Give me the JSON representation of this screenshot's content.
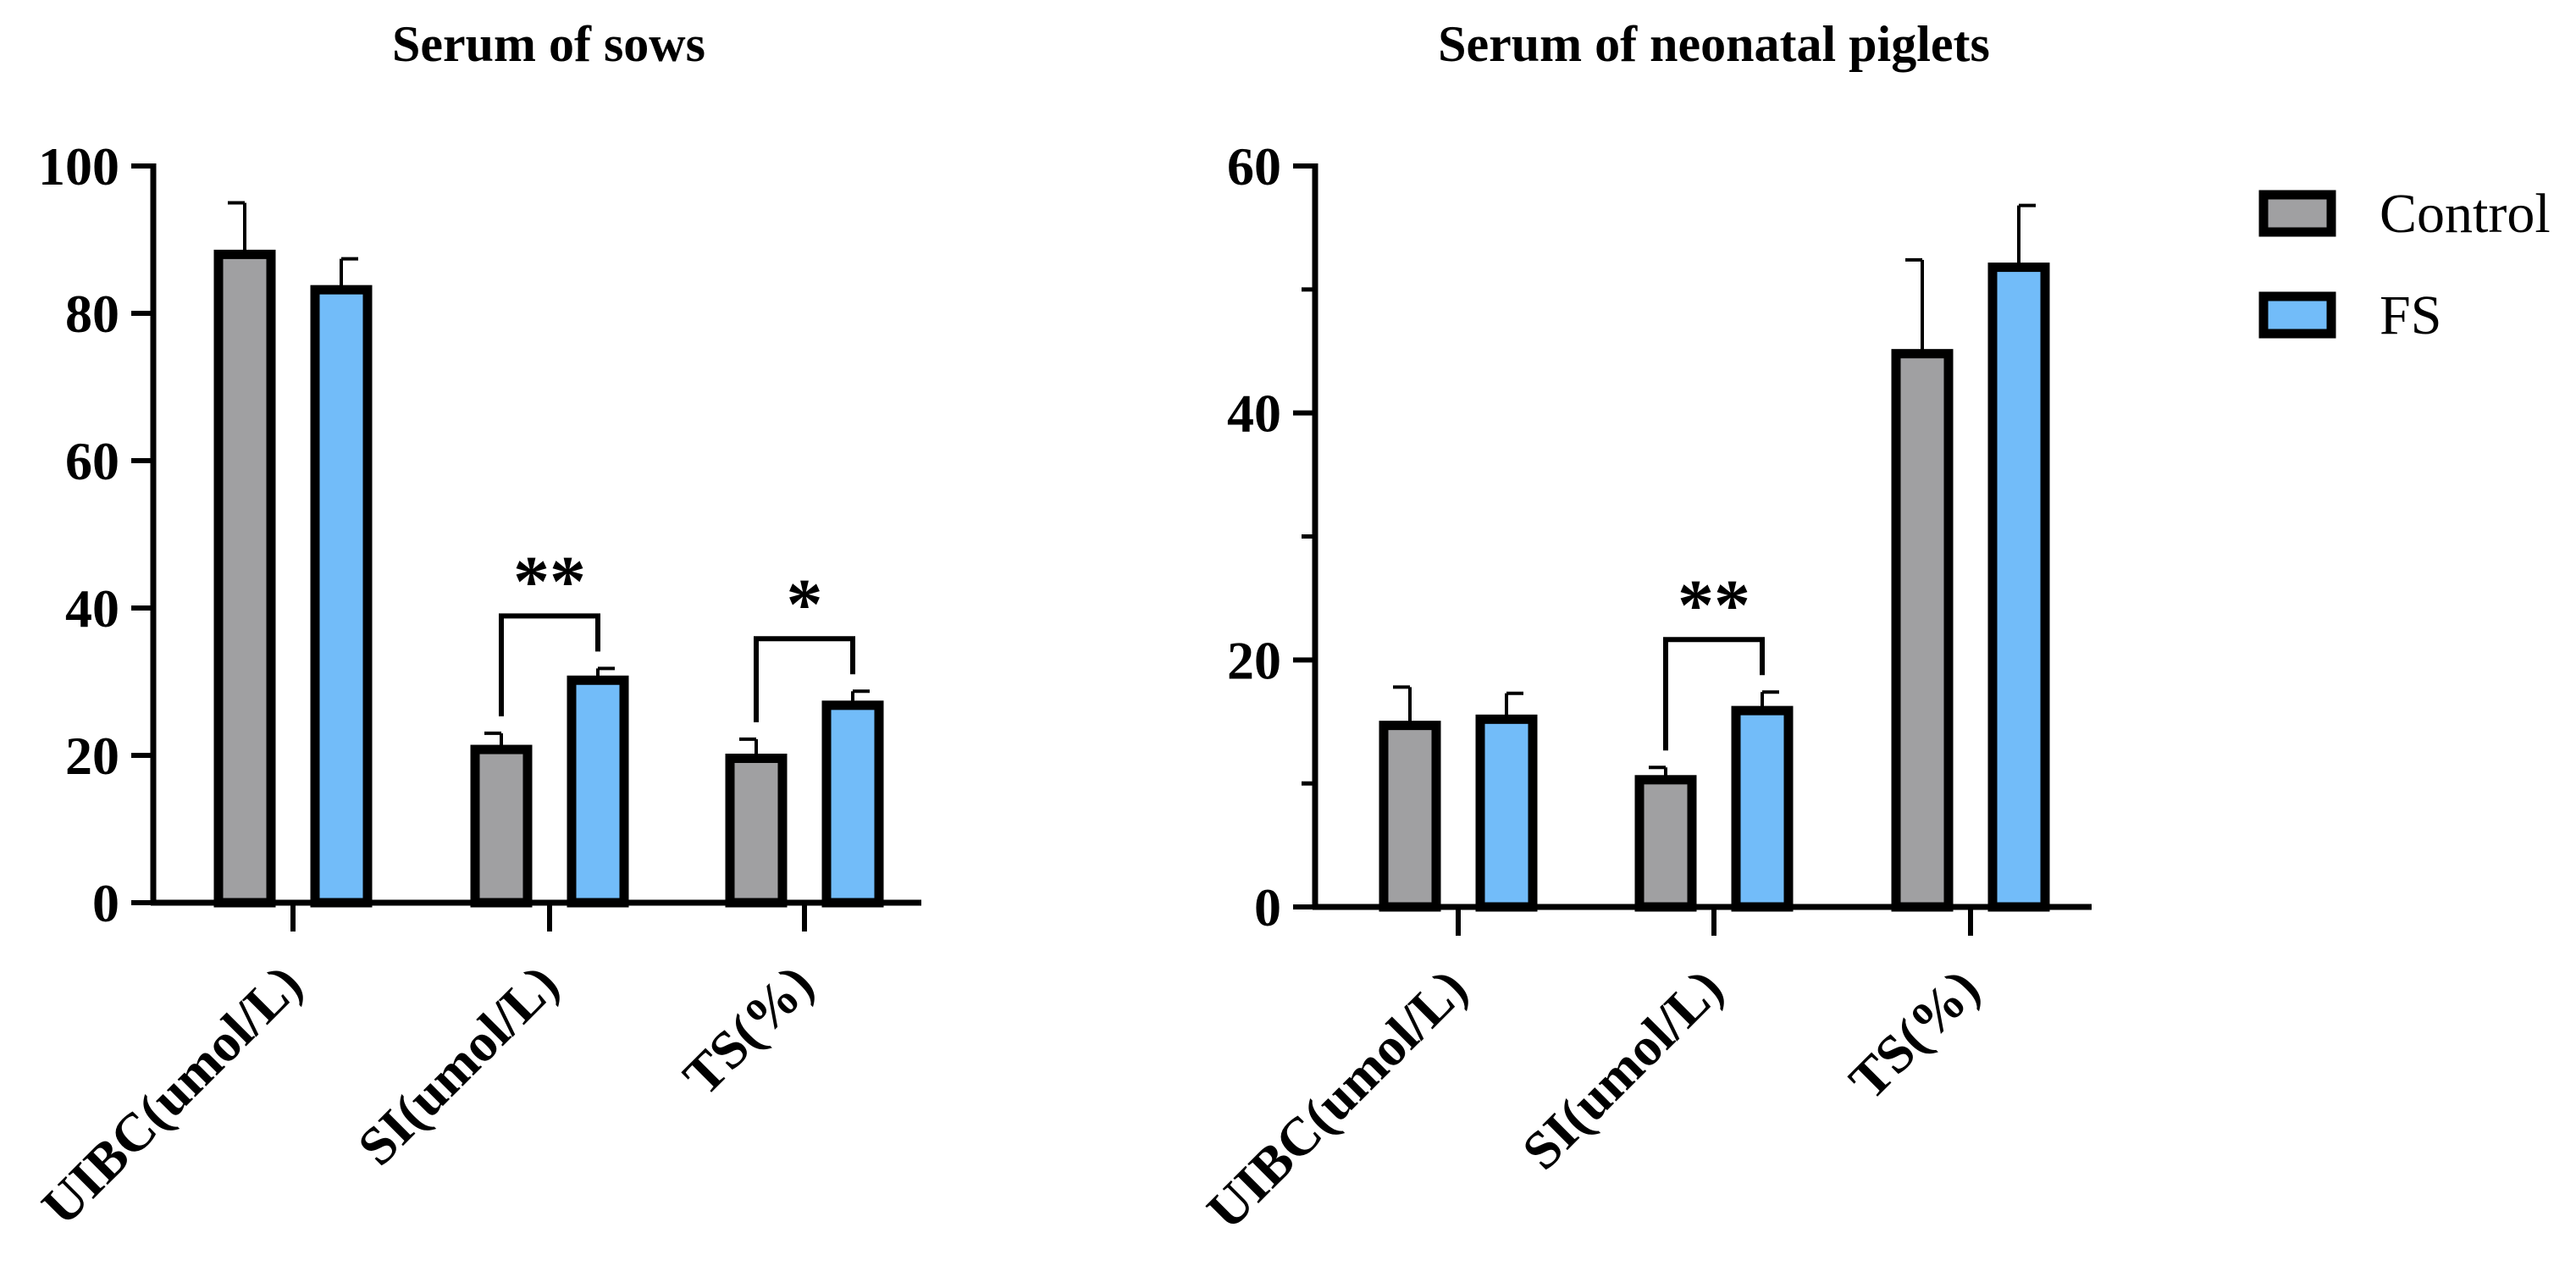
{
  "chart_data": [
    {
      "type": "bar",
      "title": "Serum of sows",
      "categories": [
        "UIBC(umol/L)",
        "SI(umol/L)",
        "TS(%)"
      ],
      "ylim": [
        0,
        100
      ],
      "yticks": [
        0,
        20,
        40,
        60,
        80,
        100
      ],
      "series": [
        {
          "name": "Control",
          "values": [
            88,
            20.8,
            19.6
          ],
          "errors": [
            7,
            2.2,
            2.6
          ]
        },
        {
          "name": "FS",
          "values": [
            83.2,
            30.2,
            26.8
          ],
          "errors": [
            4.2,
            1.6,
            1.9
          ]
        }
      ],
      "significance": [
        {
          "category": "SI(umol/L)",
          "label": "**"
        },
        {
          "category": "TS(%)",
          "label": "*"
        }
      ]
    },
    {
      "type": "bar",
      "title": "Serum of neonatal piglets",
      "categories": [
        "UIBC(umol/L)",
        "SI(umol/L)",
        "TS(%)"
      ],
      "ylim": [
        0,
        60
      ],
      "yticks": [
        0,
        20,
        40,
        60
      ],
      "series": [
        {
          "name": "Control",
          "values": [
            14.7,
            10.3,
            44.8
          ],
          "errors": [
            3.1,
            1,
            7.6
          ]
        },
        {
          "name": "FS",
          "values": [
            15.2,
            15.9,
            51.8
          ],
          "errors": [
            2.1,
            1.5,
            5
          ]
        }
      ],
      "significance": [
        {
          "category": "SI(umol/L)",
          "label": "**"
        }
      ]
    }
  ],
  "legend": {
    "entries": [
      {
        "label": "Control",
        "color": "#a0a0a2"
      },
      {
        "label": "FS",
        "color": "#72bcf9"
      }
    ]
  },
  "colors": {
    "control": "#a0a0a2",
    "fs": "#72bcf9",
    "stroke": "#000000"
  }
}
